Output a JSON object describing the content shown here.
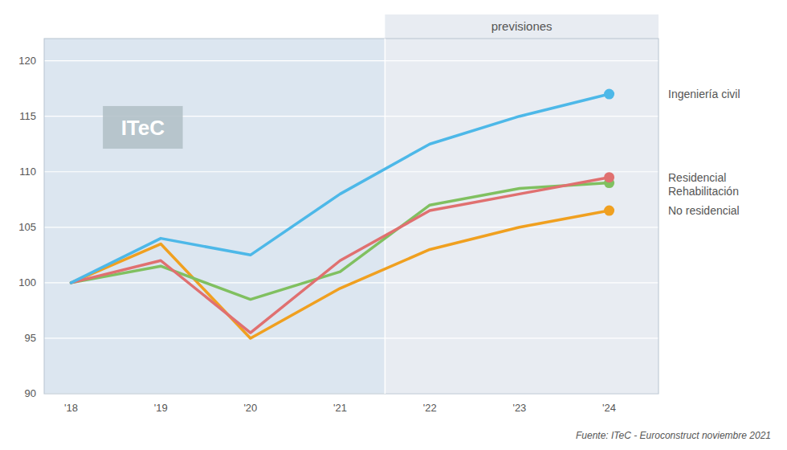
{
  "chart_data": {
    "type": "line",
    "x": [
      2018,
      2019,
      2020,
      2021,
      2022,
      2023,
      2024
    ],
    "xlim": [
      2017.7,
      2024.55
    ],
    "xticks": [
      {
        "value": 2018,
        "label": "'18"
      },
      {
        "value": 2019,
        "label": "'19"
      },
      {
        "value": 2020,
        "label": "'20"
      },
      {
        "value": 2021,
        "label": "'21"
      },
      {
        "value": 2022,
        "label": "'22"
      },
      {
        "value": 2023,
        "label": "'23"
      },
      {
        "value": 2024,
        "label": "'24"
      }
    ],
    "ylim": [
      90,
      122
    ],
    "yticks": [
      90,
      95,
      100,
      105,
      110,
      115,
      120
    ],
    "grid": true,
    "series": [
      {
        "name": "Ingeniería civil",
        "color": "#4db8e8",
        "values": [
          100,
          104,
          102.5,
          108,
          112.5,
          115,
          117
        ]
      },
      {
        "name": "Residencial",
        "color": "#e07070",
        "values": [
          100,
          102,
          95.5,
          102,
          106.5,
          108,
          109.5
        ]
      },
      {
        "name": "Rehabilitación",
        "color": "#80c060",
        "values": [
          100,
          101.5,
          98.5,
          101,
          107,
          108.5,
          109
        ]
      },
      {
        "name": "No residencial",
        "color": "#f0a020",
        "values": [
          100,
          103.5,
          95,
          99.5,
          103,
          105,
          106.5
        ]
      }
    ],
    "annotations": [
      {
        "text": "previsiones",
        "x": 2021.5
      },
      {
        "text": "ITeC",
        "x": 2018.8,
        "y": 114
      }
    ],
    "source": "Fuente: ITeC - Euroconstruct noviembre 2021"
  }
}
